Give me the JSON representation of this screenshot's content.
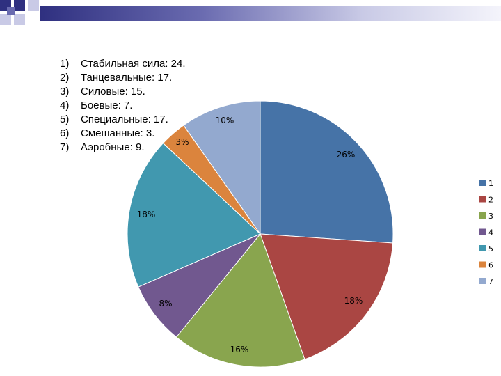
{
  "list_items": [
    {
      "num": "1)",
      "text": "Стабильная сила: 24."
    },
    {
      "num": "2)",
      "text": "Танцевальные: 17."
    },
    {
      "num": "3)",
      "text": "Силовые: 15."
    },
    {
      "num": "4)",
      "text": "Боевые: 7."
    },
    {
      "num": "5)",
      "text": "Специальные: 17."
    },
    {
      "num": "6)",
      "text": "Смешанные: 3."
    },
    {
      "num": "7)",
      "text": "Аэробные: 9."
    }
  ],
  "chart_data": {
    "type": "pie",
    "categories": [
      "1",
      "2",
      "3",
      "4",
      "5",
      "6",
      "7"
    ],
    "values": [
      24,
      17,
      15,
      7,
      17,
      3,
      9
    ],
    "data_labels": [
      "26%",
      "18%",
      "16%",
      "8%",
      "18%",
      "3%",
      "10%"
    ],
    "colors": [
      "#4673a7",
      "#aa4643",
      "#89a54e",
      "#71588f",
      "#4198af",
      "#db843d",
      "#93a9cf"
    ],
    "legend": "right",
    "start": "top, clockwise"
  }
}
